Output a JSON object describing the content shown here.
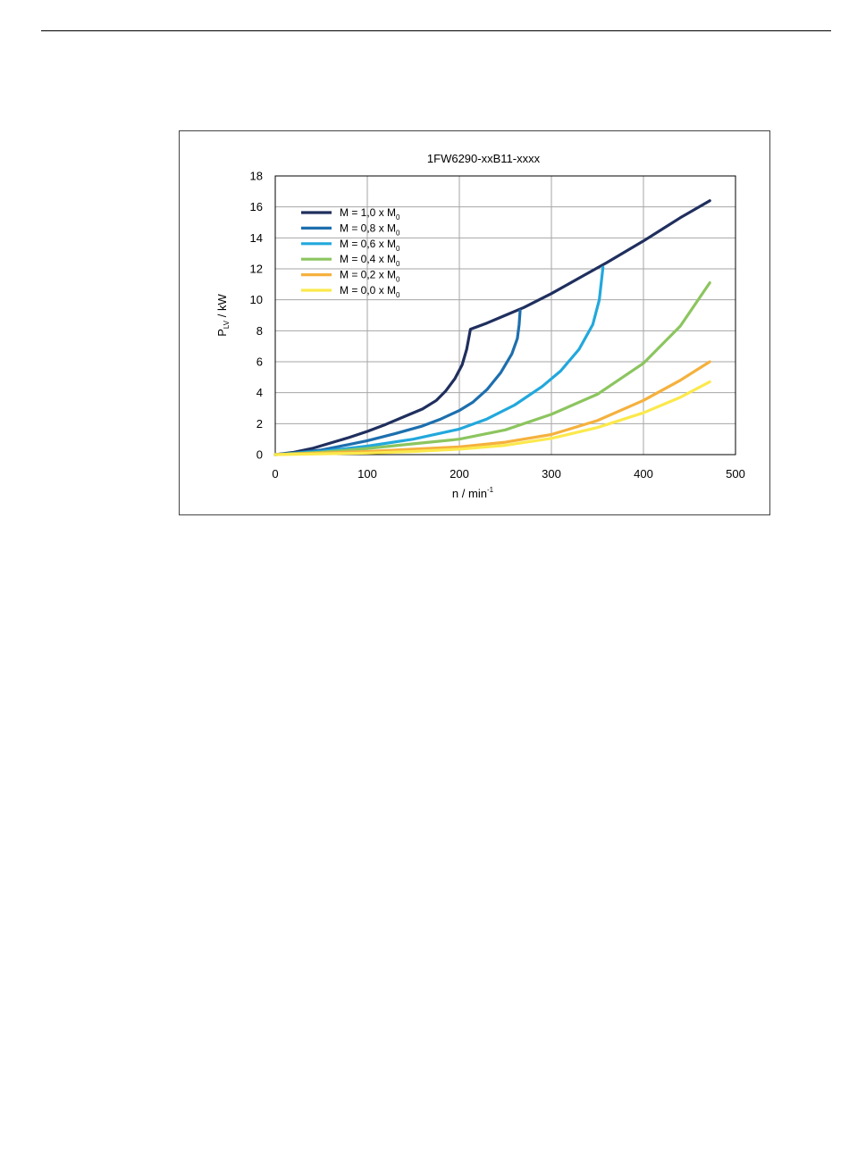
{
  "page": {
    "background": "#ffffff"
  },
  "chart_data": {
    "type": "line",
    "title": "1FW6290-xxB11-xxxx",
    "xlabel": {
      "main": "n / min",
      "sup": "-1"
    },
    "ylabel": {
      "main": "P",
      "sub": "LV",
      "unit": " / kW"
    },
    "xlim": [
      0,
      500
    ],
    "ylim": [
      0,
      18
    ],
    "xticks": [
      0,
      100,
      200,
      300,
      400,
      500
    ],
    "yticks": [
      0,
      2,
      4,
      6,
      8,
      10,
      12,
      14,
      16,
      18
    ],
    "grid": true,
    "legend_position": "top-left",
    "series": [
      {
        "name": {
          "main": "M = 1,0 x M",
          "sub": "0"
        },
        "color": "#1f2f5e",
        "points": [
          [
            0,
            0
          ],
          [
            20,
            0.15
          ],
          [
            40,
            0.4
          ],
          [
            60,
            0.75
          ],
          [
            80,
            1.1
          ],
          [
            100,
            1.5
          ],
          [
            120,
            1.95
          ],
          [
            140,
            2.45
          ],
          [
            160,
            2.95
          ],
          [
            175,
            3.5
          ],
          [
            185,
            4.1
          ],
          [
            195,
            4.9
          ],
          [
            203,
            5.8
          ],
          [
            208,
            6.8
          ],
          [
            212,
            8.1
          ],
          [
            230,
            8.5
          ],
          [
            250,
            9.0
          ],
          [
            270,
            9.5
          ],
          [
            300,
            10.4
          ],
          [
            330,
            11.4
          ],
          [
            360,
            12.4
          ],
          [
            400,
            13.8
          ],
          [
            440,
            15.3
          ],
          [
            472,
            16.4
          ]
        ]
      },
      {
        "name": {
          "main": "M = 0,8 x M",
          "sub": "0"
        },
        "color": "#1d6fae",
        "points": [
          [
            0,
            0
          ],
          [
            20,
            0.1
          ],
          [
            50,
            0.3
          ],
          [
            80,
            0.65
          ],
          [
            100,
            0.9
          ],
          [
            130,
            1.35
          ],
          [
            160,
            1.85
          ],
          [
            180,
            2.3
          ],
          [
            200,
            2.85
          ],
          [
            215,
            3.4
          ],
          [
            230,
            4.2
          ],
          [
            245,
            5.3
          ],
          [
            257,
            6.5
          ],
          [
            263,
            7.5
          ],
          [
            265,
            8.4
          ],
          [
            266,
            9.3
          ]
        ]
      },
      {
        "name": {
          "main": "M = 0,6 x M",
          "sub": "0"
        },
        "color": "#22a8dc",
        "points": [
          [
            0,
            0
          ],
          [
            50,
            0.2
          ],
          [
            100,
            0.55
          ],
          [
            150,
            1.0
          ],
          [
            200,
            1.65
          ],
          [
            230,
            2.3
          ],
          [
            260,
            3.2
          ],
          [
            290,
            4.4
          ],
          [
            310,
            5.4
          ],
          [
            330,
            6.8
          ],
          [
            345,
            8.4
          ],
          [
            352,
            10.0
          ],
          [
            356,
            12.1
          ]
        ]
      },
      {
        "name": {
          "main": "M = 0,4 x M",
          "sub": "0"
        },
        "color": "#8cc55f",
        "points": [
          [
            0,
            0
          ],
          [
            50,
            0.15
          ],
          [
            100,
            0.4
          ],
          [
            150,
            0.7
          ],
          [
            200,
            1.0
          ],
          [
            250,
            1.6
          ],
          [
            300,
            2.6
          ],
          [
            350,
            3.9
          ],
          [
            400,
            5.9
          ],
          [
            440,
            8.3
          ],
          [
            472,
            11.1
          ]
        ]
      },
      {
        "name": {
          "main": "M = 0,2 x M",
          "sub": "0"
        },
        "color": "#f5b13d",
        "points": [
          [
            0,
            0
          ],
          [
            100,
            0.2
          ],
          [
            150,
            0.35
          ],
          [
            200,
            0.5
          ],
          [
            250,
            0.8
          ],
          [
            300,
            1.3
          ],
          [
            350,
            2.2
          ],
          [
            400,
            3.5
          ],
          [
            440,
            4.8
          ],
          [
            472,
            6.0
          ]
        ]
      },
      {
        "name": {
          "main": "M = 0,0 x M",
          "sub": "0"
        },
        "color": "#fbe94c",
        "points": [
          [
            0,
            0
          ],
          [
            100,
            0.1
          ],
          [
            150,
            0.2
          ],
          [
            200,
            0.35
          ],
          [
            250,
            0.6
          ],
          [
            300,
            1.05
          ],
          [
            350,
            1.75
          ],
          [
            400,
            2.7
          ],
          [
            440,
            3.7
          ],
          [
            472,
            4.7
          ]
        ]
      }
    ]
  }
}
